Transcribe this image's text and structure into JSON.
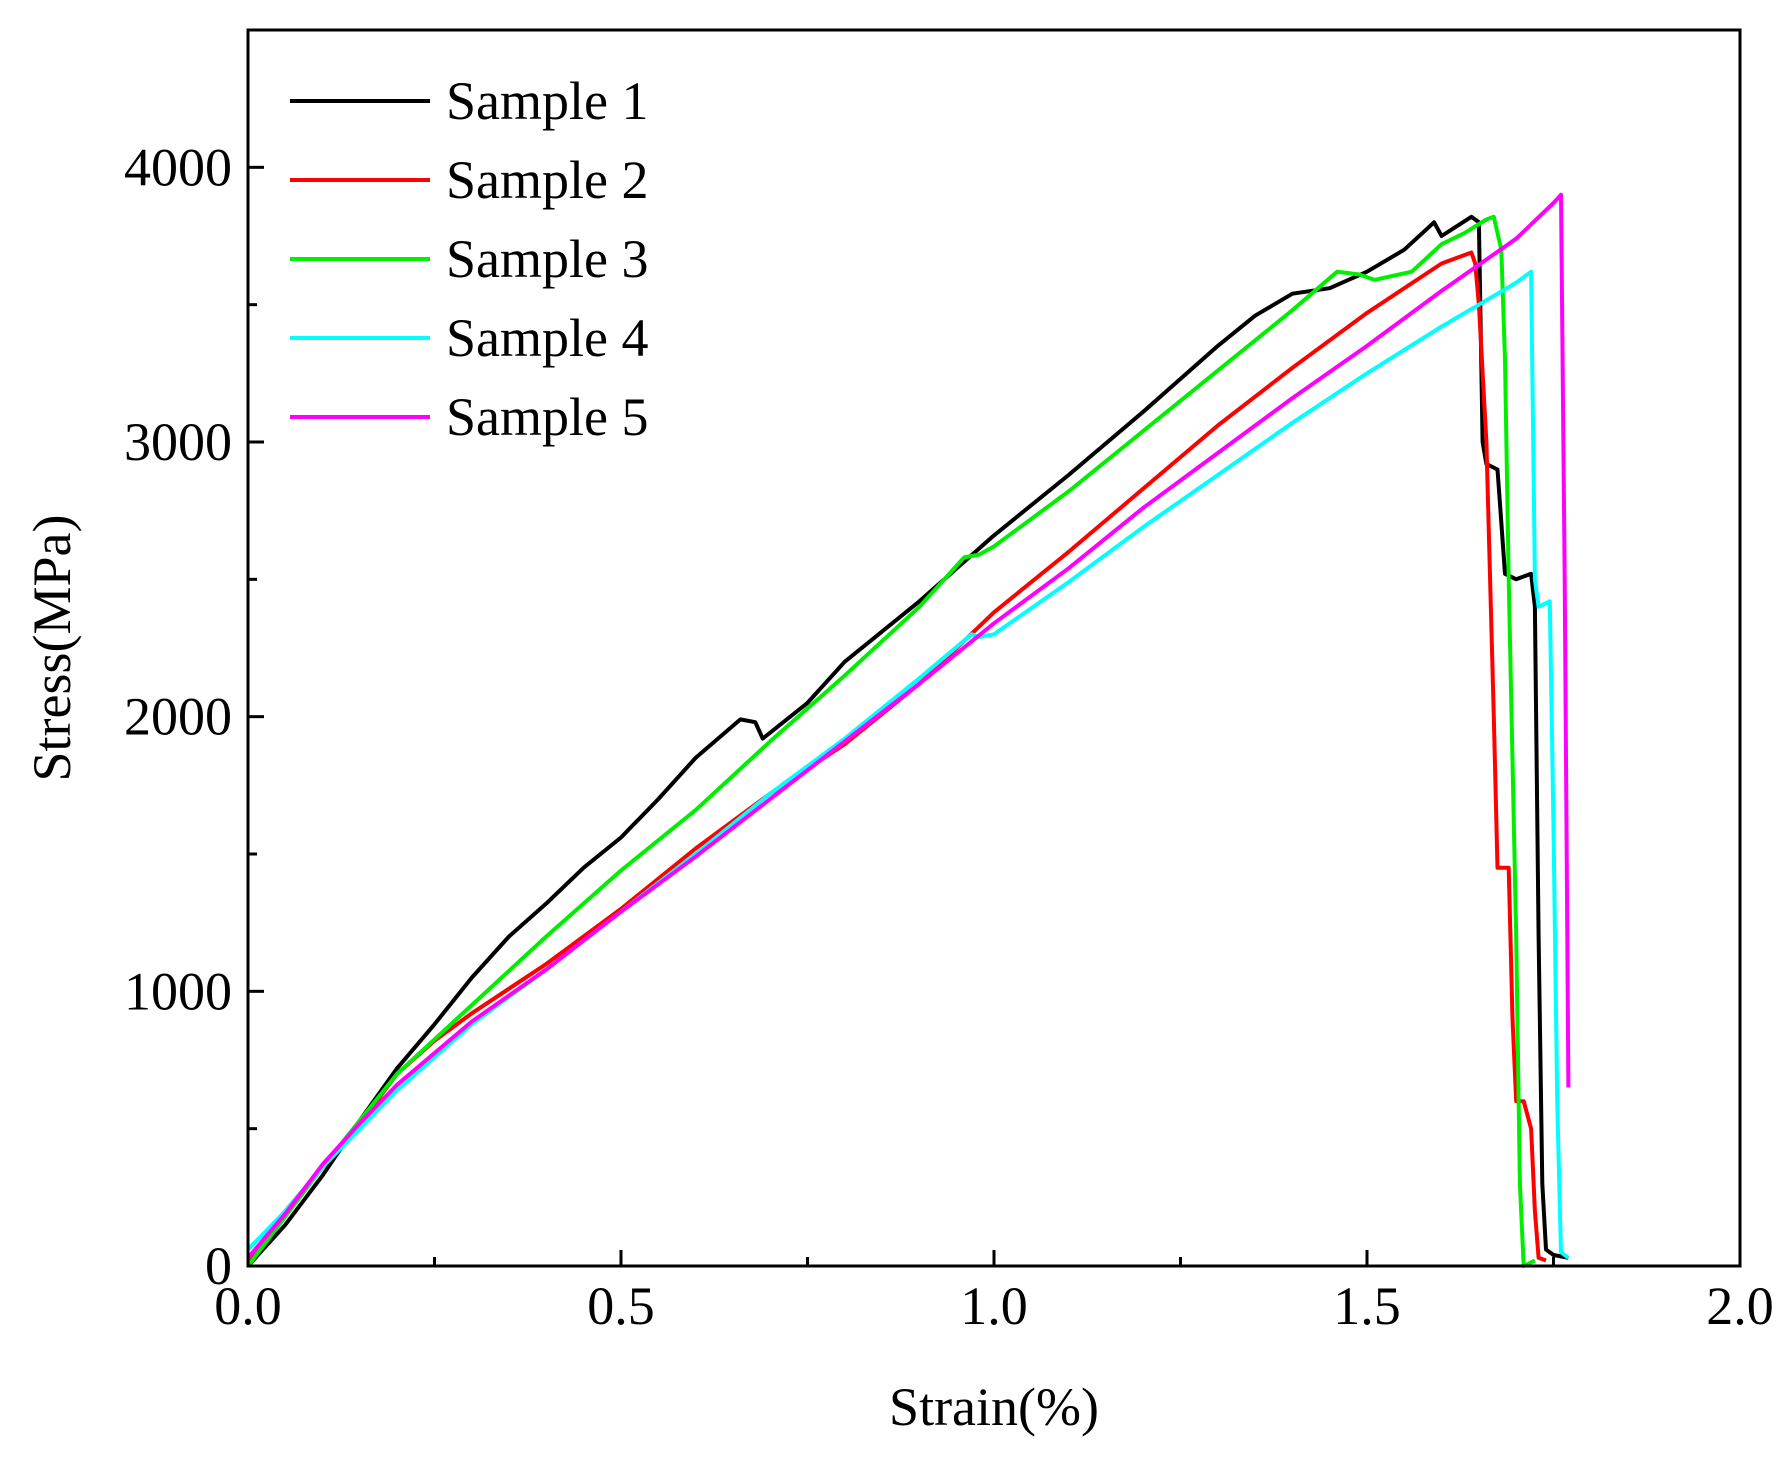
{
  "chart_data": {
    "type": "line",
    "title": "",
    "xlabel": "Strain(%)",
    "ylabel": "Stress(MPa)",
    "xlim": [
      0.0,
      2.0
    ],
    "ylim": [
      0,
      4500
    ],
    "xticks": [
      0.0,
      0.5,
      1.0,
      1.5,
      2.0
    ],
    "xtick_labels": [
      "0.0",
      "0.5",
      "1.0",
      "1.5",
      "2.0"
    ],
    "yticks": [
      0,
      1000,
      2000,
      3000,
      4000
    ],
    "ytick_labels": [
      "0",
      "1000",
      "2000",
      "3000",
      "4000"
    ],
    "grid": false,
    "legend_position": "top-left",
    "series": [
      {
        "name": "Sample 1",
        "color": "#000000",
        "points": [
          [
            0.0,
            0
          ],
          [
            0.05,
            150
          ],
          [
            0.1,
            330
          ],
          [
            0.15,
            530
          ],
          [
            0.2,
            720
          ],
          [
            0.25,
            880
          ],
          [
            0.3,
            1050
          ],
          [
            0.35,
            1200
          ],
          [
            0.4,
            1320
          ],
          [
            0.45,
            1450
          ],
          [
            0.5,
            1560
          ],
          [
            0.55,
            1700
          ],
          [
            0.6,
            1850
          ],
          [
            0.66,
            1990
          ],
          [
            0.68,
            1980
          ],
          [
            0.69,
            1920
          ],
          [
            0.75,
            2050
          ],
          [
            0.8,
            2200
          ],
          [
            0.9,
            2420
          ],
          [
            1.0,
            2660
          ],
          [
            1.1,
            2880
          ],
          [
            1.2,
            3110
          ],
          [
            1.3,
            3350
          ],
          [
            1.35,
            3460
          ],
          [
            1.4,
            3540
          ],
          [
            1.45,
            3560
          ],
          [
            1.5,
            3620
          ],
          [
            1.55,
            3700
          ],
          [
            1.59,
            3800
          ],
          [
            1.6,
            3750
          ],
          [
            1.64,
            3820
          ],
          [
            1.65,
            3800
          ],
          [
            1.655,
            3000
          ],
          [
            1.66,
            2920
          ],
          [
            1.675,
            2900
          ],
          [
            1.685,
            2520
          ],
          [
            1.7,
            2500
          ],
          [
            1.72,
            2520
          ],
          [
            1.725,
            2400
          ],
          [
            1.73,
            1200
          ],
          [
            1.735,
            300
          ],
          [
            1.74,
            60
          ],
          [
            1.75,
            40
          ],
          [
            1.77,
            30
          ]
        ]
      },
      {
        "name": "Sample 2",
        "color": "#ff0000",
        "points": [
          [
            0.0,
            20
          ],
          [
            0.05,
            200
          ],
          [
            0.1,
            360
          ],
          [
            0.15,
            520
          ],
          [
            0.2,
            700
          ],
          [
            0.25,
            820
          ],
          [
            0.3,
            920
          ],
          [
            0.4,
            1100
          ],
          [
            0.5,
            1300
          ],
          [
            0.6,
            1520
          ],
          [
            0.7,
            1720
          ],
          [
            0.8,
            1900
          ],
          [
            0.9,
            2120
          ],
          [
            1.0,
            2380
          ],
          [
            1.1,
            2600
          ],
          [
            1.2,
            2830
          ],
          [
            1.3,
            3060
          ],
          [
            1.4,
            3270
          ],
          [
            1.5,
            3470
          ],
          [
            1.6,
            3650
          ],
          [
            1.64,
            3690
          ],
          [
            1.645,
            3650
          ],
          [
            1.65,
            3500
          ],
          [
            1.66,
            3000
          ],
          [
            1.67,
            2000
          ],
          [
            1.675,
            1450
          ],
          [
            1.69,
            1450
          ],
          [
            1.695,
            900
          ],
          [
            1.7,
            600
          ],
          [
            1.71,
            600
          ],
          [
            1.72,
            500
          ],
          [
            1.725,
            200
          ],
          [
            1.73,
            30
          ],
          [
            1.74,
            20
          ]
        ]
      },
      {
        "name": "Sample 3",
        "color": "#00ee00",
        "points": [
          [
            0.0,
            0
          ],
          [
            0.05,
            180
          ],
          [
            0.1,
            360
          ],
          [
            0.15,
            530
          ],
          [
            0.2,
            700
          ],
          [
            0.3,
            950
          ],
          [
            0.4,
            1200
          ],
          [
            0.5,
            1440
          ],
          [
            0.6,
            1660
          ],
          [
            0.7,
            1910
          ],
          [
            0.8,
            2150
          ],
          [
            0.9,
            2400
          ],
          [
            0.96,
            2580
          ],
          [
            0.98,
            2590
          ],
          [
            1.0,
            2620
          ],
          [
            1.1,
            2820
          ],
          [
            1.2,
            3040
          ],
          [
            1.3,
            3260
          ],
          [
            1.4,
            3480
          ],
          [
            1.46,
            3620
          ],
          [
            1.49,
            3610
          ],
          [
            1.51,
            3590
          ],
          [
            1.56,
            3620
          ],
          [
            1.6,
            3720
          ],
          [
            1.63,
            3760
          ],
          [
            1.66,
            3810
          ],
          [
            1.67,
            3820
          ],
          [
            1.68,
            3700
          ],
          [
            1.685,
            3300
          ],
          [
            1.69,
            2500
          ],
          [
            1.7,
            1200
          ],
          [
            1.705,
            300
          ],
          [
            1.71,
            0
          ],
          [
            1.725,
            20
          ]
        ]
      },
      {
        "name": "Sample 4",
        "color": "#00ffff",
        "points": [
          [
            0.0,
            60
          ],
          [
            0.05,
            200
          ],
          [
            0.1,
            360
          ],
          [
            0.15,
            500
          ],
          [
            0.2,
            640
          ],
          [
            0.3,
            880
          ],
          [
            0.4,
            1080
          ],
          [
            0.5,
            1290
          ],
          [
            0.6,
            1500
          ],
          [
            0.7,
            1720
          ],
          [
            0.8,
            1920
          ],
          [
            0.9,
            2140
          ],
          [
            0.97,
            2300
          ],
          [
            0.98,
            2290
          ],
          [
            1.0,
            2300
          ],
          [
            1.1,
            2490
          ],
          [
            1.2,
            2690
          ],
          [
            1.3,
            2880
          ],
          [
            1.4,
            3070
          ],
          [
            1.5,
            3250
          ],
          [
            1.6,
            3420
          ],
          [
            1.65,
            3500
          ],
          [
            1.7,
            3580
          ],
          [
            1.72,
            3620
          ],
          [
            1.725,
            2500
          ],
          [
            1.73,
            2400
          ],
          [
            1.745,
            2420
          ],
          [
            1.75,
            1600
          ],
          [
            1.755,
            600
          ],
          [
            1.76,
            50
          ],
          [
            1.77,
            30
          ]
        ]
      },
      {
        "name": "Sample 5",
        "color": "#ff00ff",
        "points": [
          [
            0.0,
            30
          ],
          [
            0.05,
            190
          ],
          [
            0.1,
            370
          ],
          [
            0.15,
            520
          ],
          [
            0.2,
            660
          ],
          [
            0.3,
            890
          ],
          [
            0.4,
            1080
          ],
          [
            0.5,
            1290
          ],
          [
            0.6,
            1490
          ],
          [
            0.7,
            1700
          ],
          [
            0.8,
            1910
          ],
          [
            0.9,
            2120
          ],
          [
            1.0,
            2340
          ],
          [
            1.1,
            2540
          ],
          [
            1.2,
            2760
          ],
          [
            1.3,
            2960
          ],
          [
            1.4,
            3160
          ],
          [
            1.5,
            3350
          ],
          [
            1.6,
            3550
          ],
          [
            1.7,
            3740
          ],
          [
            1.75,
            3870
          ],
          [
            1.76,
            3900
          ],
          [
            1.765,
            2500
          ],
          [
            1.77,
            650
          ]
        ]
      }
    ]
  }
}
